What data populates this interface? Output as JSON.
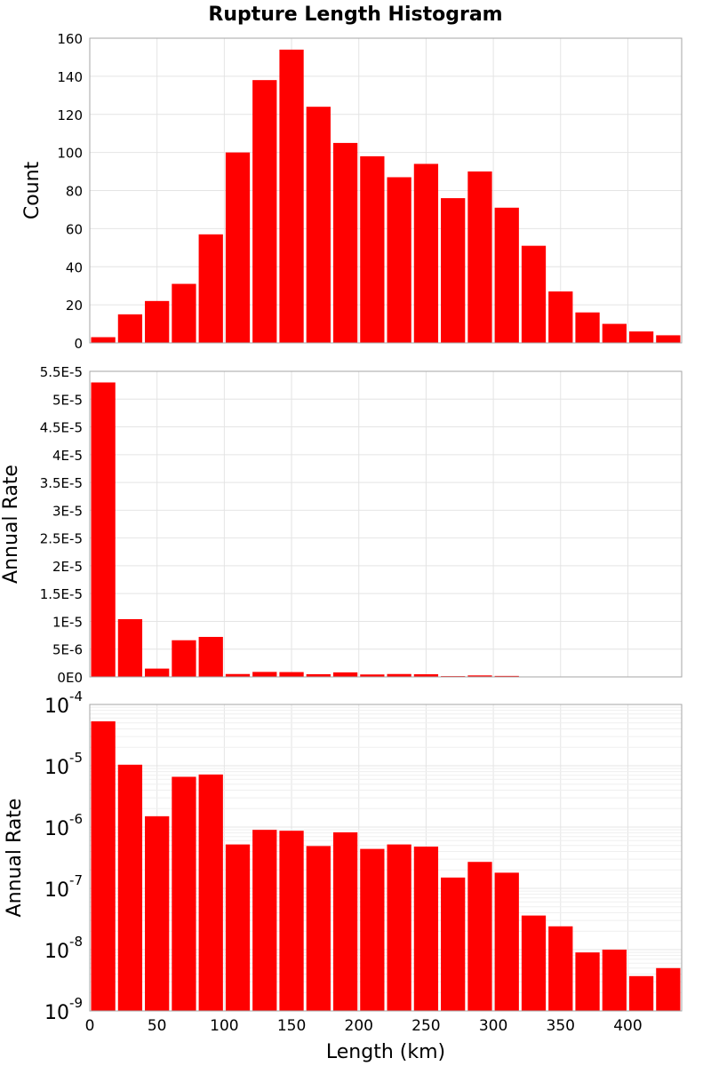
{
  "chart_data": {
    "title": "Rupture Length Histogram",
    "xlabel": "Length (km)",
    "xlim": [
      0,
      440
    ],
    "xticks": [
      "0",
      "50",
      "100",
      "150",
      "200",
      "250",
      "300",
      "350",
      "400"
    ],
    "bar_color": "#ff0000",
    "bin_width": 20,
    "x": [
      10,
      30,
      50,
      70,
      90,
      110,
      130,
      150,
      170,
      190,
      210,
      230,
      250,
      270,
      290,
      310,
      330,
      350,
      370,
      390,
      410,
      430
    ],
    "panels": [
      {
        "type": "bar",
        "scale": "linear",
        "ylabel": "Count",
        "ylim": [
          0,
          160
        ],
        "yticks": [
          "0",
          "20",
          "40",
          "60",
          "80",
          "100",
          "120",
          "140",
          "160"
        ],
        "values": [
          3,
          15,
          22,
          31,
          57,
          100,
          138,
          154,
          124,
          105,
          98,
          87,
          94,
          76,
          90,
          71,
          51,
          27,
          16,
          10,
          6,
          4
        ]
      },
      {
        "type": "bar",
        "scale": "linear",
        "ylabel": "Annual Rate",
        "ylim": [
          0,
          5.5e-05
        ],
        "yticks": [
          "0E0",
          "5E-6",
          "1E-5",
          "1.5E-5",
          "2E-5",
          "2.5E-5",
          "3E-5",
          "3.5E-5",
          "4E-5",
          "4.5E-5",
          "5E-5",
          "5.5E-5"
        ],
        "values": [
          5.3e-05,
          1.04e-05,
          1.5e-06,
          6.6e-06,
          7.2e-06,
          5.2e-07,
          9e-07,
          8.7e-07,
          4.9e-07,
          8.2e-07,
          4.4e-07,
          5.2e-07,
          4.8e-07,
          1.5e-07,
          2.7e-07,
          1.8e-07,
          3.6e-08,
          2.4e-08,
          9e-09,
          1e-08,
          3.7e-09,
          5e-09
        ]
      },
      {
        "type": "bar",
        "scale": "log",
        "ylabel": "Annual Rate",
        "ylim": [
          1e-09,
          0.0001
        ],
        "yticks": [
          {
            "base": "10",
            "exp": "-9"
          },
          {
            "base": "10",
            "exp": "-8"
          },
          {
            "base": "10",
            "exp": "-7"
          },
          {
            "base": "10",
            "exp": "-6"
          },
          {
            "base": "10",
            "exp": "-5"
          },
          {
            "base": "10",
            "exp": "-4"
          }
        ],
        "values": [
          5.3e-05,
          1.04e-05,
          1.5e-06,
          6.6e-06,
          7.2e-06,
          5.2e-07,
          9e-07,
          8.7e-07,
          4.9e-07,
          8.2e-07,
          4.4e-07,
          5.2e-07,
          4.8e-07,
          1.5e-07,
          2.7e-07,
          1.8e-07,
          3.6e-08,
          2.4e-08,
          9e-09,
          1e-08,
          3.7e-09,
          5e-09
        ]
      }
    ]
  }
}
